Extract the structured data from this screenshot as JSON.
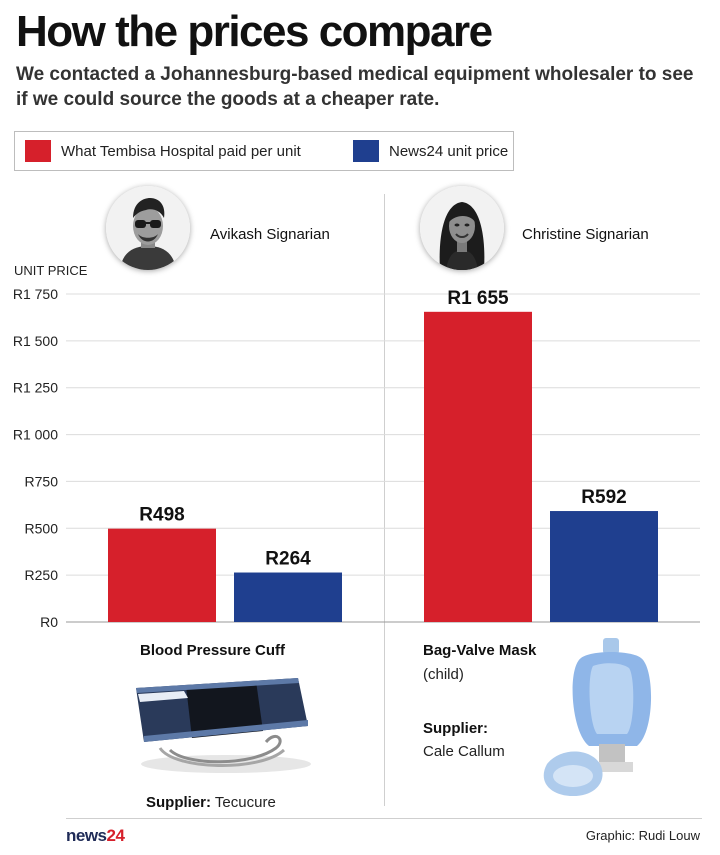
{
  "header": {
    "title": "How the prices compare",
    "subtitle": "We contacted a Johannesburg-based medical equipment wholesaler to see if we could source the goods at a cheaper rate."
  },
  "legend": [
    {
      "label": "What Tembisa Hospital paid per unit",
      "color": "#d6202b"
    },
    {
      "label": "News24 unit price",
      "color": "#1f3f8f"
    }
  ],
  "people": [
    {
      "name": "Avikash Signarian",
      "icon": "man-portrait-icon"
    },
    {
      "name": "Christine Signarian",
      "icon": "woman-portrait-icon"
    }
  ],
  "chart_data": {
    "type": "bar",
    "ylabel": "UNIT PRICE",
    "ylim": [
      0,
      1750
    ],
    "yticks": [
      0,
      250,
      500,
      750,
      1000,
      1250,
      1500,
      1750
    ],
    "yticklabels": [
      "R0",
      "R250",
      "R500",
      "R750",
      "R1 000",
      "R1 250",
      "R1 500",
      "R1 750"
    ],
    "grid": true,
    "categories": [
      "Blood Pressure Cuff",
      "Bag-Valve Mask"
    ],
    "series": [
      {
        "name": "What Tembisa Hospital paid per unit",
        "color": "#d6202b",
        "values": [
          498,
          1655
        ],
        "labels": [
          "R498",
          "R1 655"
        ]
      },
      {
        "name": "News24 unit price",
        "color": "#1f3f8f",
        "values": [
          264,
          592
        ],
        "labels": [
          "R264",
          "R592"
        ]
      }
    ]
  },
  "products": {
    "cuff": {
      "name": "Blood Pressure Cuff",
      "supplier_label": "Supplier:",
      "supplier": "Tecucure",
      "icon": "blood-pressure-cuff-icon"
    },
    "mask": {
      "name": "Bag-Valve Mask",
      "sub": "(child)",
      "supplier_label": "Supplier:",
      "supplier": "Cale Callum",
      "icon": "bag-valve-mask-icon"
    }
  },
  "footer": {
    "brand_a": "news",
    "brand_b": "24",
    "credit": "Graphic: Rudi Louw"
  }
}
